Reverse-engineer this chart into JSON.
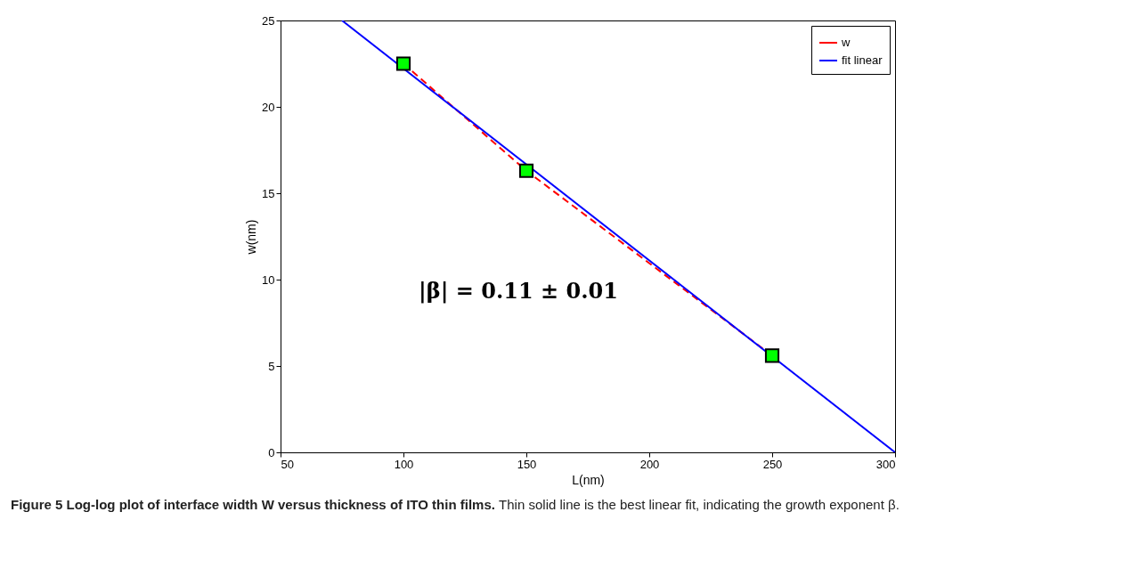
{
  "chart_data": {
    "type": "line",
    "xlabel": "L(nm)",
    "ylabel": "w(nm)",
    "xlim": [
      50,
      300
    ],
    "xticks": [
      50,
      100,
      150,
      200,
      250,
      300
    ],
    "ylim": [
      0,
      25
    ],
    "yticks": [
      0,
      5,
      10,
      15,
      20,
      25
    ],
    "grid": false,
    "legend": "top right",
    "series": [
      {
        "name": "w",
        "color": "#ff0000",
        "line_style": "dashed",
        "marker": "square",
        "x": [
          100,
          150,
          250
        ],
        "values": [
          22.5,
          16.3,
          5.6
        ]
      },
      {
        "name": "fit linear",
        "color": "#0000ff",
        "line_style": "solid",
        "marker": "none",
        "x": [
          75,
          300
        ],
        "values": [
          25,
          0
        ]
      }
    ],
    "annotations": [
      "|β| = 0.11 ± 0.01",
      "Figure 5 Log-log plot of interface width W versus thickness of ITO thin films.",
      "Thin solid line is the best linear fit, indicating the growth exponent β."
    ]
  }
}
